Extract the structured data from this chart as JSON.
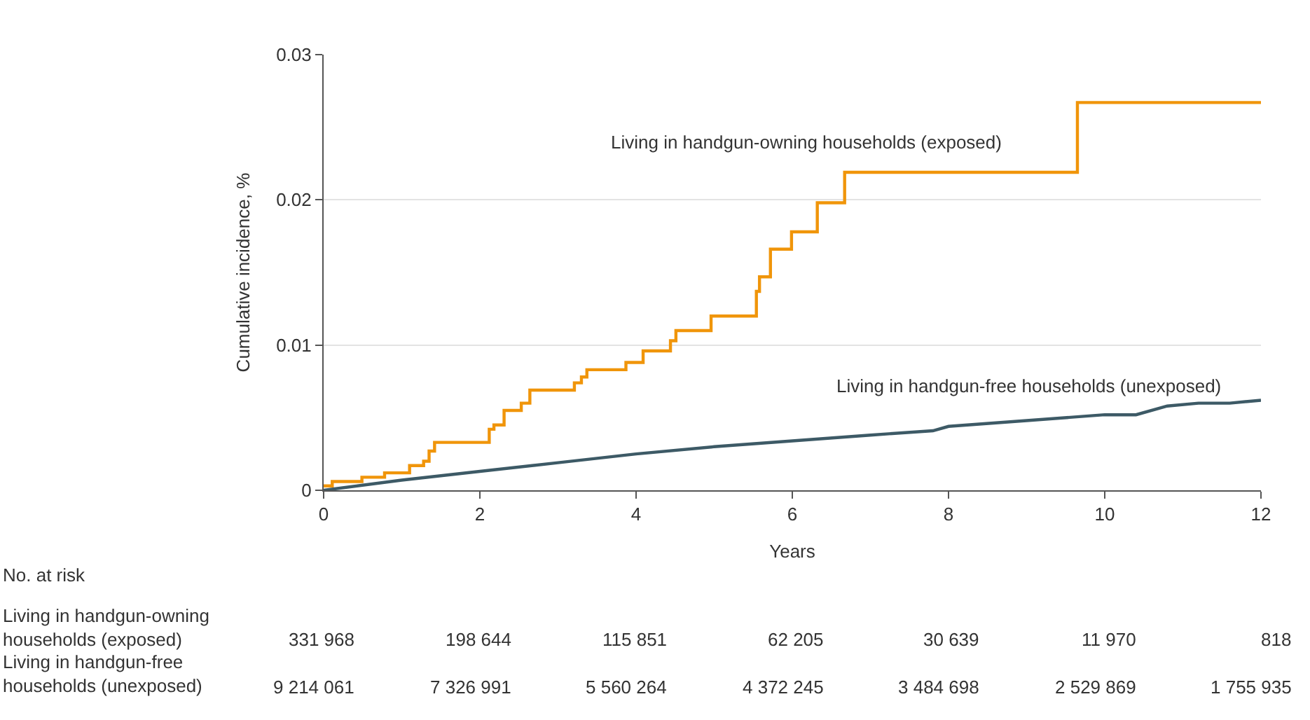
{
  "chart_data": {
    "type": "line",
    "xlabel": "Years",
    "ylabel": "Cumulative incidence, %",
    "xlim": [
      0,
      12
    ],
    "xticks": [
      0,
      2,
      4,
      6,
      8,
      10,
      12
    ],
    "ylim": [
      0,
      0.03
    ],
    "yticks": [
      0,
      0.01,
      0.02,
      0.03
    ],
    "grid": "y",
    "marker": "none",
    "line_style": "solid",
    "series": [
      {
        "name": "Living in handgun-owning households (exposed)",
        "type": "step",
        "color": "#f0950a",
        "x": [
          0,
          0.11,
          0.49,
          0.78,
          1.1,
          1.28,
          1.35,
          1.42,
          2.12,
          2.18,
          2.31,
          2.53,
          2.64,
          3.21,
          3.3,
          3.37,
          3.87,
          4.09,
          4.44,
          4.51,
          4.96,
          5.54,
          5.58,
          5.72,
          5.99,
          6.32,
          6.67,
          9.65,
          12
        ],
        "values": [
          0.0003,
          0.0006,
          0.0009,
          0.0012,
          0.0017,
          0.002,
          0.0027,
          0.0033,
          0.0042,
          0.0045,
          0.0055,
          0.006,
          0.0069,
          0.0074,
          0.0078,
          0.0083,
          0.0088,
          0.0096,
          0.0103,
          0.011,
          0.012,
          0.0137,
          0.0147,
          0.0166,
          0.0178,
          0.0198,
          0.0219,
          0.0267,
          0.0267
        ]
      },
      {
        "name": "Living in handgun-free households (unexposed)",
        "color": "#3d5a66",
        "x": [
          0,
          1,
          2,
          3,
          4,
          5,
          6,
          7,
          7.8,
          8,
          9,
          10,
          10.4,
          10.8,
          11.2,
          11.6,
          12
        ],
        "values": [
          0,
          0.0007,
          0.0013,
          0.0019,
          0.0025,
          0.003,
          0.0034,
          0.0038,
          0.0041,
          0.0044,
          0.0048,
          0.0052,
          0.0052,
          0.0058,
          0.006,
          0.006,
          0.0062
        ]
      }
    ],
    "annotations": [
      "No. at risk",
      "Living in handgun-owning\nhouseholds (exposed)",
      "331 968",
      "198 644",
      "115 851",
      "62 205",
      "30 639",
      "11 970",
      "818",
      "Living in handgun-free\nhouseholds (unexposed)",
      "9 214 061",
      "7 326 991",
      "5 560 264",
      "4 372 245",
      "3 484 698",
      "2 529 869",
      "1 755 935"
    ]
  }
}
